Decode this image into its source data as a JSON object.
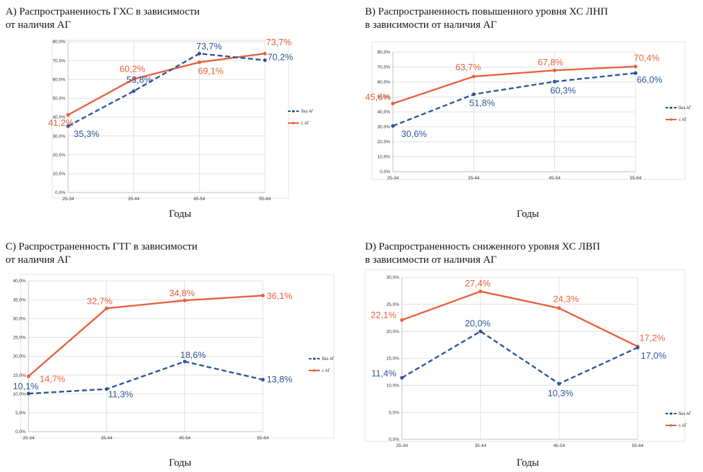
{
  "colors": {
    "series1": "#2e5597",
    "series2": "#e8603c",
    "grid": "#d9d9d9",
    "axis": "#bfbfbf"
  },
  "xlabel": "Годы",
  "chart_data": [
    {
      "id": "A",
      "type": "line",
      "title": "A) Распространенность ГХС в зависимости\nот наличия АГ",
      "xlabel": "Годы",
      "ylabel": "",
      "categories": [
        "25-34",
        "35-44",
        "45-54",
        "55-64"
      ],
      "ylim": [
        0,
        80
      ],
      "yticks": [
        0,
        10,
        20,
        30,
        40,
        50,
        60,
        70,
        80
      ],
      "ytick_labels": [
        "0,0%",
        "10,0%",
        "20,0%",
        "30,0%",
        "40,0%",
        "50,0%",
        "60,0%",
        "70,0%",
        "80,0%"
      ],
      "legend_position": "right",
      "grid": true,
      "series": [
        {
          "name": "без АГ",
          "style": "dashed",
          "values": [
            35.3,
            53.8,
            73.7,
            70.2
          ],
          "labels": [
            "35,3%",
            "53,8%",
            "73,7%",
            "70,2%"
          ]
        },
        {
          "name": "с АГ",
          "style": "solid",
          "values": [
            41.2,
            60.2,
            69.1,
            73.7
          ],
          "labels": [
            "41,2%",
            "60,2%",
            "69,1%",
            "73,7%"
          ]
        }
      ]
    },
    {
      "id": "B",
      "type": "line",
      "title": "B) Распространенность повышенного уровня ХС ЛНП\nв зависимости от наличия АГ",
      "xlabel": "Годы",
      "ylabel": "",
      "categories": [
        "25-34",
        "35-44",
        "45-54",
        "55-64"
      ],
      "ylim": [
        0,
        80
      ],
      "yticks": [
        0,
        10,
        20,
        30,
        40,
        50,
        60,
        70,
        80
      ],
      "ytick_labels": [
        "0,0%",
        "10,0%",
        "20,0%",
        "30,0%",
        "40,0%",
        "50,0%",
        "60,0%",
        "70,0%",
        "80,0%"
      ],
      "legend_position": "right",
      "grid": true,
      "series": [
        {
          "name": "без АГ",
          "style": "dashed",
          "values": [
            30.6,
            51.8,
            60.3,
            66.0
          ],
          "labels": [
            "30,6%",
            "51,8%",
            "60,3%",
            "66,0%"
          ]
        },
        {
          "name": "с АГ",
          "style": "solid",
          "values": [
            45.6,
            63.7,
            67.8,
            70.4
          ],
          "labels": [
            "45,6%",
            "63,7%",
            "67,8%",
            "70,4%"
          ]
        }
      ]
    },
    {
      "id": "C",
      "type": "line",
      "title": "C) Распространенность ГТГ в зависимости\nот наличия АГ",
      "xlabel": "Годы",
      "ylabel": "",
      "categories": [
        "25-34",
        "35-44",
        "45-54",
        "55-64"
      ],
      "ylim": [
        0,
        40
      ],
      "yticks": [
        0,
        5,
        10,
        15,
        20,
        25,
        30,
        35,
        40
      ],
      "ytick_labels": [
        "0,0%",
        "5,0%",
        "10,0%",
        "15,0%",
        "20,0%",
        "25,0%",
        "30,0%",
        "35,0%",
        "40,0%"
      ],
      "legend_position": "right",
      "grid": true,
      "series": [
        {
          "name": "без АГ",
          "style": "dashed",
          "values": [
            10.1,
            11.3,
            18.6,
            13.8
          ],
          "labels": [
            "10,1%",
            "11,3%",
            "18,6%",
            "13,8%"
          ]
        },
        {
          "name": "с АГ",
          "style": "solid",
          "values": [
            14.7,
            32.7,
            34.8,
            36.1
          ],
          "labels": [
            "14,7%",
            "32,7%",
            "34,8%",
            "36,1%"
          ]
        }
      ]
    },
    {
      "id": "D",
      "type": "line",
      "title": "D) Распространенность сниженного уровня ХС ЛВП\nв зависимости от наличия АГ",
      "xlabel": "Годы",
      "ylabel": "",
      "categories": [
        "25-34",
        "35-44",
        "45-54",
        "55-64"
      ],
      "ylim": [
        0,
        30
      ],
      "yticks": [
        0,
        5,
        10,
        15,
        20,
        25,
        30
      ],
      "ytick_labels": [
        "0,0%",
        "5,0%",
        "10,0%",
        "15,0%",
        "20,0%",
        "25,0%",
        "30,0%"
      ],
      "legend_position": "right",
      "grid": true,
      "series": [
        {
          "name": "без АГ",
          "style": "dashed",
          "values": [
            11.4,
            20.0,
            10.3,
            17.0
          ],
          "labels": [
            "11,4%",
            "20,0%",
            "10,3%",
            "17,0%"
          ]
        },
        {
          "name": "с АГ",
          "style": "solid",
          "values": [
            22.1,
            27.4,
            24.3,
            17.2
          ],
          "labels": [
            "22,1%",
            "27,4%",
            "24,3%",
            "17,2%"
          ]
        }
      ]
    }
  ]
}
